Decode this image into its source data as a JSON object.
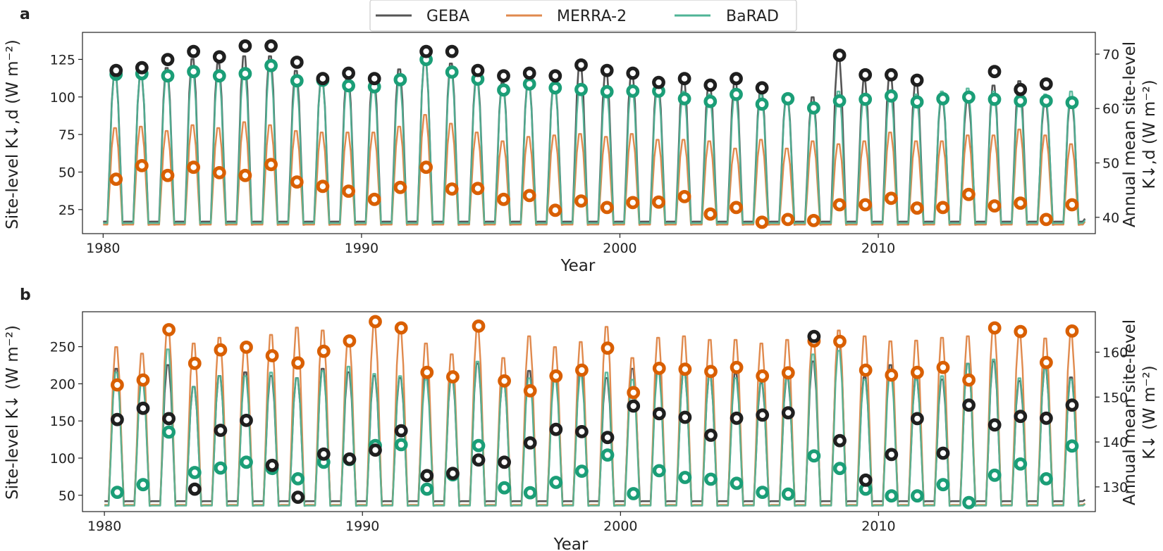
{
  "legend": {
    "items": [
      {
        "label": "GEBA",
        "color": "#555555"
      },
      {
        "label": "MERRA-2",
        "color": "#e08a4e"
      },
      {
        "label": "BaRAD",
        "color": "#4fb496"
      }
    ]
  },
  "colors": {
    "geba_line": "#555555",
    "merra_line": "#e08a4e",
    "barad_line": "#4fb496",
    "geba_marker": "#1f1f1f",
    "merra_marker": "#d95f02",
    "barad_marker": "#1b9e77"
  },
  "chart_data": [
    {
      "type": "line",
      "panel": "a",
      "xlabel": "Year",
      "ylabel": "Site-level K↓,d (W m⁻²)",
      "y2label_line1": "Annual mean site-level",
      "y2label_line2": "K↓,d (W m⁻²)",
      "xlim": [
        1979.2,
        2018.4
      ],
      "ylim": [
        9,
        143
      ],
      "y2lim": [
        37,
        74
      ],
      "xticks": [
        "1980",
        "1990",
        "2000",
        "2010"
      ],
      "yticks": [
        "25",
        "50",
        "75",
        "100",
        "125"
      ],
      "y2ticks": [
        "40",
        "50",
        "60",
        "70"
      ],
      "monthly_series": [
        {
          "name": "GEBA",
          "line_min": 17,
          "annual_peaks": [
            119,
            118,
            122,
            128,
            125,
            130,
            130,
            120,
            116,
            119,
            118,
            121,
            128,
            125,
            117,
            112,
            114,
            113,
            126,
            120,
            119,
            114,
            115,
            113,
            113,
            108,
            104,
            102,
            130,
            113,
            119,
            113,
            103,
            101,
            110,
            113,
            100,
            102
          ]
        },
        {
          "name": "MERRA-2",
          "line_min": 15,
          "annual_peaks": [
            81,
            82,
            79,
            83,
            81,
            85,
            83,
            79,
            78,
            78,
            78,
            82,
            90,
            84,
            78,
            72,
            75,
            76,
            77,
            75,
            77,
            73,
            73,
            72,
            67,
            73,
            67,
            72,
            70,
            72,
            78,
            72,
            72,
            76,
            76,
            80,
            76,
            70
          ]
        },
        {
          "name": "BaRAD",
          "line_min": 16,
          "annual_peaks": [
            118,
            119,
            118,
            121,
            119,
            121,
            123,
            113,
            115,
            113,
            111,
            113,
            129,
            121,
            114,
            110,
            112,
            111,
            110,
            109,
            110,
            108,
            106,
            104,
            105,
            104,
            102,
            98,
            106,
            104,
            106,
            104,
            106,
            108,
            106,
            105,
            104,
            106
          ]
        }
      ],
      "annual_means": [
        {
          "name": "GEBA",
          "x": [
            1980.5,
            1981.5,
            1982.5,
            1983.5,
            1984.5,
            1985.5,
            1986.5,
            1987.5,
            1988.5,
            1989.5,
            1990.5,
            1992.5,
            1993.5,
            1994.5,
            1995.5,
            1996.5,
            1997.5,
            1998.5,
            1999.5,
            2000.5,
            2001.5,
            2002.5,
            2003.5,
            2004.5,
            2005.5,
            2008.5,
            2009.5,
            2010.5,
            2011.5,
            2014.5,
            2015.5,
            2016.5
          ],
          "y": [
            67,
            67.5,
            69,
            70.5,
            69.5,
            71.5,
            71.5,
            68.5,
            65.5,
            66.5,
            65.5,
            70.5,
            70.5,
            67,
            66,
            66.5,
            66,
            68,
            67,
            66.5,
            64.8,
            65.5,
            64.3,
            65.5,
            63.8,
            69.8,
            66.2,
            66.2,
            65.2,
            66.8,
            63.5,
            64.5
          ]
        },
        {
          "name": "MERRA-2",
          "x": [
            1980.5,
            1981.5,
            1982.5,
            1983.5,
            1984.5,
            1985.5,
            1986.5,
            1987.5,
            1988.5,
            1989.5,
            1990.5,
            1991.5,
            1992.5,
            1993.5,
            1994.5,
            1995.5,
            1996.5,
            1997.5,
            1998.5,
            1999.5,
            2000.5,
            2001.5,
            2002.5,
            2003.5,
            2004.5,
            2005.5,
            2006.5,
            2007.5,
            2008.5,
            2009.5,
            2010.5,
            2011.5,
            2012.5,
            2013.5,
            2014.5,
            2015.5,
            2016.5,
            2017.5
          ],
          "y": [
            47,
            49.5,
            47.7,
            49.2,
            48.2,
            47.7,
            49.7,
            46.5,
            45.7,
            44.8,
            43.3,
            45.5,
            49.2,
            45.2,
            45.3,
            43.3,
            44,
            41.3,
            43,
            41.8,
            42.7,
            42.8,
            43.8,
            40.6,
            41.8,
            39.1,
            39.6,
            39.4,
            42.3,
            42.3,
            43.5,
            41.7,
            41.8,
            44.2,
            42.1,
            42.6,
            39.6,
            42.3
          ]
        },
        {
          "name": "BaRAD",
          "x": [
            1980.5,
            1981.5,
            1982.5,
            1983.5,
            1984.5,
            1985.5,
            1986.5,
            1987.5,
            1988.5,
            1989.5,
            1990.5,
            1991.5,
            1992.5,
            1993.5,
            1994.5,
            1995.5,
            1996.5,
            1997.5,
            1998.5,
            1999.5,
            2000.5,
            2001.5,
            2002.5,
            2003.5,
            2004.5,
            2005.5,
            2006.5,
            2007.5,
            2008.5,
            2009.5,
            2010.5,
            2011.5,
            2012.5,
            2013.5,
            2014.5,
            2015.5,
            2016.5,
            2017.5
          ],
          "y": [
            66.3,
            66.4,
            66,
            66.8,
            66,
            66.4,
            67.9,
            65.1,
            65.2,
            64.2,
            64,
            65.3,
            69,
            66.7,
            65.4,
            63.4,
            64.5,
            63.8,
            63.5,
            63.1,
            63.2,
            63.2,
            61.8,
            61.3,
            62.6,
            60.8,
            61.8,
            60.1,
            61.4,
            61.7,
            62.3,
            61.2,
            61.8,
            62.1,
            61.7,
            61.4,
            61.4,
            61.1
          ]
        }
      ]
    },
    {
      "type": "line",
      "panel": "b",
      "xlabel": "Year",
      "ylabel": "Site-level K↓ (W m⁻²)",
      "y2label_line1": "Annual mean site-level",
      "y2label_line2": "K↓ (W m⁻²)",
      "xlim": [
        1979.15,
        2018.4
      ],
      "ylim": [
        28,
        297
      ],
      "y2lim": [
        124.5,
        169
      ],
      "xticks": [
        "1980",
        "1990",
        "2000",
        "2010"
      ],
      "yticks": [
        "50",
        "100",
        "150",
        "200",
        "250"
      ],
      "y2ticks": [
        "130",
        "140",
        "150",
        "160"
      ],
      "monthly_series": [
        {
          "name": "GEBA",
          "line_min": 42,
          "annual_peaks": [
            225,
            215,
            230,
            200,
            215,
            220,
            215,
            212,
            225,
            220,
            215,
            212,
            225,
            215,
            232,
            210,
            222,
            220,
            222,
            212,
            225,
            228,
            222,
            215,
            218,
            205,
            212,
            235,
            265,
            213,
            230,
            212,
            210,
            232,
            235,
            208,
            225,
            213
          ]
        },
        {
          "name": "MERRA-2",
          "line_min": 37,
          "annual_peaks": [
            255,
            246,
            286,
            260,
            268,
            262,
            272,
            282,
            278,
            270,
            285,
            280,
            260,
            245,
            280,
            240,
            270,
            255,
            262,
            283,
            240,
            268,
            270,
            265,
            265,
            260,
            265,
            270,
            278,
            270,
            263,
            264,
            268,
            270,
            285,
            272,
            267,
            270
          ]
        },
        {
          "name": "BaRAD",
          "line_min": 36,
          "annual_peaks": [
            220,
            210,
            252,
            200,
            215,
            215,
            220,
            212,
            222,
            228,
            218,
            215,
            210,
            218,
            235,
            210,
            212,
            212,
            215,
            220,
            210,
            220,
            220,
            215,
            212,
            208,
            215,
            245,
            250,
            210,
            220,
            210,
            215,
            232,
            238,
            212,
            225,
            210
          ]
        }
      ],
      "annual_means": [
        {
          "name": "GEBA",
          "x": [
            1980.5,
            1981.5,
            1982.5,
            1983.5,
            1984.5,
            1985.5,
            1986.5,
            1987.5,
            1988.5,
            1989.5,
            1990.5,
            1991.5,
            1992.5,
            1993.5,
            1994.5,
            1995.5,
            1996.5,
            1997.5,
            1998.5,
            1999.5,
            2000.5,
            2001.5,
            2002.5,
            2003.5,
            2004.5,
            2005.5,
            2006.5,
            2007.5,
            2008.5,
            2009.5,
            2010.5,
            2011.5,
            2012.5,
            2013.5,
            2014.5,
            2015.5,
            2016.5,
            2017.5
          ],
          "y": [
            145,
            147.5,
            145.2,
            129.5,
            142.6,
            144.8,
            134.8,
            127.7,
            137.3,
            136.2,
            138.2,
            142.5,
            132.5,
            133,
            136,
            135.5,
            139.8,
            142.8,
            142.3,
            141,
            148,
            146.3,
            145.5,
            141.5,
            145.3,
            146,
            146.5,
            163.5,
            140.3,
            131.5,
            137.2,
            145.2,
            137.5,
            148.2,
            143.8,
            145.7,
            145.3,
            148.2
          ]
        },
        {
          "name": "MERRA-2",
          "x": [
            1980.5,
            1981.5,
            1982.5,
            1983.5,
            1984.5,
            1985.5,
            1986.5,
            1987.5,
            1988.5,
            1989.5,
            1990.5,
            1991.5,
            1992.5,
            1993.5,
            1994.5,
            1995.5,
            1996.5,
            1997.5,
            1998.5,
            1999.5,
            2000.5,
            2001.5,
            2002.5,
            2003.5,
            2004.5,
            2005.5,
            2006.5,
            2007.5,
            2008.5,
            2009.5,
            2010.5,
            2011.5,
            2012.5,
            2013.5,
            2014.5,
            2015.5,
            2016.5,
            2017.5
          ],
          "y": [
            152.7,
            153.8,
            165,
            157.5,
            160.5,
            161.1,
            159.2,
            157.6,
            160.2,
            162.5,
            166.8,
            165.4,
            155.5,
            154.5,
            165.8,
            153.6,
            151.4,
            154.7,
            156,
            160.9,
            151,
            156.4,
            156.2,
            155.7,
            156.6,
            154.7,
            155.4,
            162.5,
            162.4,
            156,
            154.9,
            155.5,
            156.6,
            153.8,
            165.4,
            164.6,
            157.7,
            164.7
          ]
        },
        {
          "name": "BaRAD",
          "x": [
            1980.5,
            1981.5,
            1982.5,
            1983.5,
            1984.5,
            1985.5,
            1986.5,
            1987.5,
            1988.5,
            1989.5,
            1990.5,
            1991.5,
            1992.5,
            1993.5,
            1994.5,
            1995.5,
            1996.5,
            1997.5,
            1998.5,
            1999.5,
            2000.5,
            2001.5,
            2002.5,
            2003.5,
            2004.5,
            2005.5,
            2006.5,
            2007.5,
            2008.5,
            2009.5,
            2010.5,
            2011.5,
            2012.5,
            2013.5,
            2014.5,
            2015.5,
            2016.5,
            2017.5
          ],
          "y": [
            128.8,
            130.5,
            142.2,
            133.2,
            134.2,
            135.5,
            134.1,
            131.8,
            135.5,
            136.1,
            139.2,
            139.4,
            129.5,
            132.7,
            139.2,
            129.8,
            128.7,
            131,
            133.5,
            137.1,
            128.5,
            133.6,
            132.1,
            131.7,
            130.8,
            128.8,
            128.4,
            136.9,
            134.1,
            129.5,
            128,
            128,
            130.5,
            126.5,
            132.6,
            135.1,
            131.8,
            139.1
          ]
        }
      ]
    }
  ]
}
